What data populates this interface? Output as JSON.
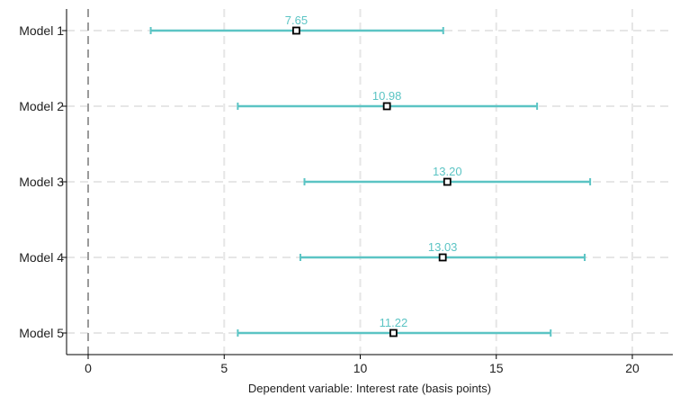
{
  "chart_data": {
    "type": "scatter",
    "orientation": "horizontal",
    "title": "",
    "xlabel": "Dependent variable: Interest rate (basis points)",
    "ylabel": "",
    "xlim": [
      -0.7,
      21.5
    ],
    "xticks": [
      0,
      5,
      10,
      15,
      20
    ],
    "grid": true,
    "reference_line_x": 0,
    "colors": {
      "interval": "#5bc4c4",
      "label": "#5bc4c4",
      "point": "#000000",
      "grid": "#e6e6e6",
      "reference": "#9a9a9a"
    },
    "categories": [
      "Model 1",
      "Model 2",
      "Model 3",
      "Model 4",
      "Model 5"
    ],
    "points": [
      {
        "category": "Model 1",
        "estimate": 7.65,
        "label": "7.65",
        "lower": 2.3,
        "upper": 13.05
      },
      {
        "category": "Model 2",
        "estimate": 10.98,
        "label": "10.98",
        "lower": 5.5,
        "upper": 16.5
      },
      {
        "category": "Model 3",
        "estimate": 13.2,
        "label": "13.20",
        "lower": 7.95,
        "upper": 18.45
      },
      {
        "category": "Model 4",
        "estimate": 13.03,
        "label": "13.03",
        "lower": 7.8,
        "upper": 18.25
      },
      {
        "category": "Model 5",
        "estimate": 11.22,
        "label": "11.22",
        "lower": 5.5,
        "upper": 17.0
      }
    ]
  }
}
